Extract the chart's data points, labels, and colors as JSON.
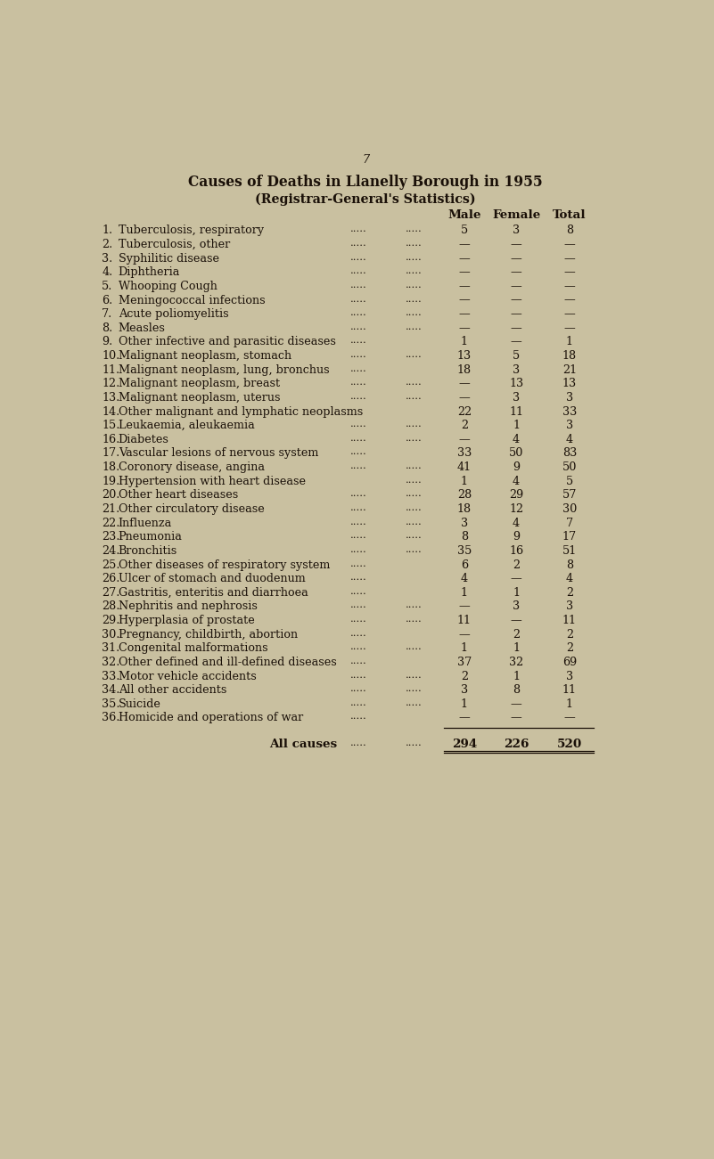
{
  "page_number": "7",
  "title1": "Causes of Deaths in Llanelly Borough in 1955",
  "title2": "(Registrar-General's Statistics)",
  "col_headers": [
    "Male",
    "Female",
    "Total"
  ],
  "rows": [
    {
      "num": "1.",
      "desc": "Tuberculosis, respiratory",
      "dots1": ".....",
      "dots2": ".....",
      "male": "5",
      "female": "3",
      "total": "8"
    },
    {
      "num": "2.",
      "desc": "Tuberculosis, other",
      "dots1": ".....",
      "dots2": ".....",
      "male": "—",
      "female": "—",
      "total": "—"
    },
    {
      "num": "3.",
      "desc": "Syphilitic disease",
      "dots1": ".....",
      "dots2": ".....",
      "male": "—",
      "female": "—",
      "total": "—"
    },
    {
      "num": "4.",
      "desc": "Diphtheria",
      "dots1": ".....",
      "dots2": ".....",
      "male": "—",
      "female": "—",
      "total": "—"
    },
    {
      "num": "5.",
      "desc": "Whooping Cough",
      "dots1": ".....",
      "dots2": ".....",
      "male": "—",
      "female": "—",
      "total": "—"
    },
    {
      "num": "6.",
      "desc": "Meningococcal infections",
      "dots1": ".....",
      "dots2": ".....",
      "male": "—",
      "female": "—",
      "total": "—"
    },
    {
      "num": "7.",
      "desc": "Acute poliomyelitis",
      "dots1": ".....",
      "dots2": ".....",
      "male": "—",
      "female": "—",
      "total": "—"
    },
    {
      "num": "8.",
      "desc": "Measles",
      "dots1": ".....",
      "dots2": ".....",
      "male": "—",
      "female": "—",
      "total": "—"
    },
    {
      "num": "9.",
      "desc": "Other infective and parasitic diseases",
      "dots1": ".....",
      "dots2": "",
      "male": "1",
      "female": "—",
      "total": "1"
    },
    {
      "num": "10.",
      "desc": "Malignant neoplasm, stomach",
      "dots1": ".....",
      "dots2": ".....",
      "male": "13",
      "female": "5",
      "total": "18"
    },
    {
      "num": "11.",
      "desc": "Malignant neoplasm, lung, bronchus",
      "dots1": ".....",
      "dots2": "",
      "male": "18",
      "female": "3",
      "total": "21"
    },
    {
      "num": "12.",
      "desc": "Malignant neoplasm, breast",
      "dots1": ".....",
      "dots2": ".....",
      "male": "—",
      "female": "13",
      "total": "13"
    },
    {
      "num": "13.",
      "desc": "Malignant neoplasm, uterus",
      "dots1": ".....",
      "dots2": ".....",
      "male": "—",
      "female": "3",
      "total": "3"
    },
    {
      "num": "14.",
      "desc": "Other malignant and lymphatic neoplasms",
      "dots1": "",
      "dots2": "",
      "male": "22",
      "female": "11",
      "total": "33"
    },
    {
      "num": "15.",
      "desc": "Leukaemia, aleukaemia",
      "dots1": ".....",
      "dots2": ".....",
      "male": "2",
      "female": "1",
      "total": "3"
    },
    {
      "num": "16.",
      "desc": "Diabetes",
      "dots1": ".....",
      "dots2": ".....",
      "male": "—",
      "female": "4",
      "total": "4"
    },
    {
      "num": "17.",
      "desc": "Vascular lesions of nervous system",
      "dots1": ".....",
      "dots2": "",
      "male": "33",
      "female": "50",
      "total": "83"
    },
    {
      "num": "18.",
      "desc": "Coronory disease, angina",
      "dots1": ".....",
      "dots2": ".....",
      "male": "41",
      "female": "9",
      "total": "50"
    },
    {
      "num": "19.",
      "desc": "Hypertension with heart disease",
      "dots1": "",
      "dots2": ".....",
      "male": "1",
      "female": "4",
      "total": "5"
    },
    {
      "num": "20.",
      "desc": "Other heart diseases",
      "dots1": ".....",
      "dots2": ".....",
      "male": "28",
      "female": "29",
      "total": "57"
    },
    {
      "num": "21.",
      "desc": "Other circulatory disease",
      "dots1": ".....",
      "dots2": ".....",
      "male": "18",
      "female": "12",
      "total": "30"
    },
    {
      "num": "22.",
      "desc": "Influenza",
      "dots1": ".....",
      "dots2": ".....",
      "male": "3",
      "female": "4",
      "total": "7"
    },
    {
      "num": "23.",
      "desc": "Pneumonia",
      "dots1": ".....",
      "dots2": ".....",
      "male": "8",
      "female": "9",
      "total": "17"
    },
    {
      "num": "24.",
      "desc": "Bronchitis",
      "dots1": ".....",
      "dots2": ".....",
      "male": "35",
      "female": "16",
      "total": "51"
    },
    {
      "num": "25.",
      "desc": "Other diseases of respiratory system",
      "dots1": ".....",
      "dots2": "",
      "male": "6",
      "female": "2",
      "total": "8"
    },
    {
      "num": "26.",
      "desc": "Ulcer of stomach and duodenum",
      "dots1": ".....",
      "dots2": "",
      "male": "4",
      "female": "—",
      "total": "4"
    },
    {
      "num": "27.",
      "desc": "Gastritis, enteritis and diarrhoea",
      "dots1": ".....",
      "dots2": "",
      "male": "1",
      "female": "1",
      "total": "2"
    },
    {
      "num": "28.",
      "desc": "Nephritis and nephrosis",
      "dots1": ".....",
      "dots2": ".....",
      "male": "—",
      "female": "3",
      "total": "3"
    },
    {
      "num": "29.",
      "desc": "Hyperplasia of prostate",
      "dots1": ".....",
      "dots2": ".....",
      "male": "11",
      "female": "—",
      "total": "11"
    },
    {
      "num": "30.",
      "desc": "Pregnancy, childbirth, abortion",
      "dots1": ".....",
      "dots2": "",
      "male": "—",
      "female": "2",
      "total": "2"
    },
    {
      "num": "31.",
      "desc": "Congenital malformations",
      "dots1": ".....",
      "dots2": ".....",
      "male": "1",
      "female": "1",
      "total": "2"
    },
    {
      "num": "32.",
      "desc": "Other defined and ill-defined diseases",
      "dots1": ".....",
      "dots2": "",
      "male": "37",
      "female": "32",
      "total": "69"
    },
    {
      "num": "33.",
      "desc": "Motor vehicle accidents",
      "dots1": ".....",
      "dots2": ".....",
      "male": "2",
      "female": "1",
      "total": "3"
    },
    {
      "num": "34.",
      "desc": "All other accidents",
      "dots1": ".....",
      "dots2": ".....",
      "male": "3",
      "female": "8",
      "total": "11"
    },
    {
      "num": "35.",
      "desc": "Suicide",
      "dots1": ".....",
      "dots2": ".....",
      "male": "1",
      "female": "—",
      "total": "1"
    },
    {
      "num": "36.",
      "desc": "Homicide and operations of war",
      "dots1": ".....",
      "dots2": "",
      "male": "—",
      "female": "—",
      "total": "—"
    }
  ],
  "footer_label": "All causes",
  "footer_dots1": ".....",
  "footer_dots2": ".....",
  "footer_male": "294",
  "footer_female": "226",
  "footer_total": "520",
  "bg_color": "#c9c0a0",
  "text_color": "#1a1008",
  "font_size": 9.2
}
